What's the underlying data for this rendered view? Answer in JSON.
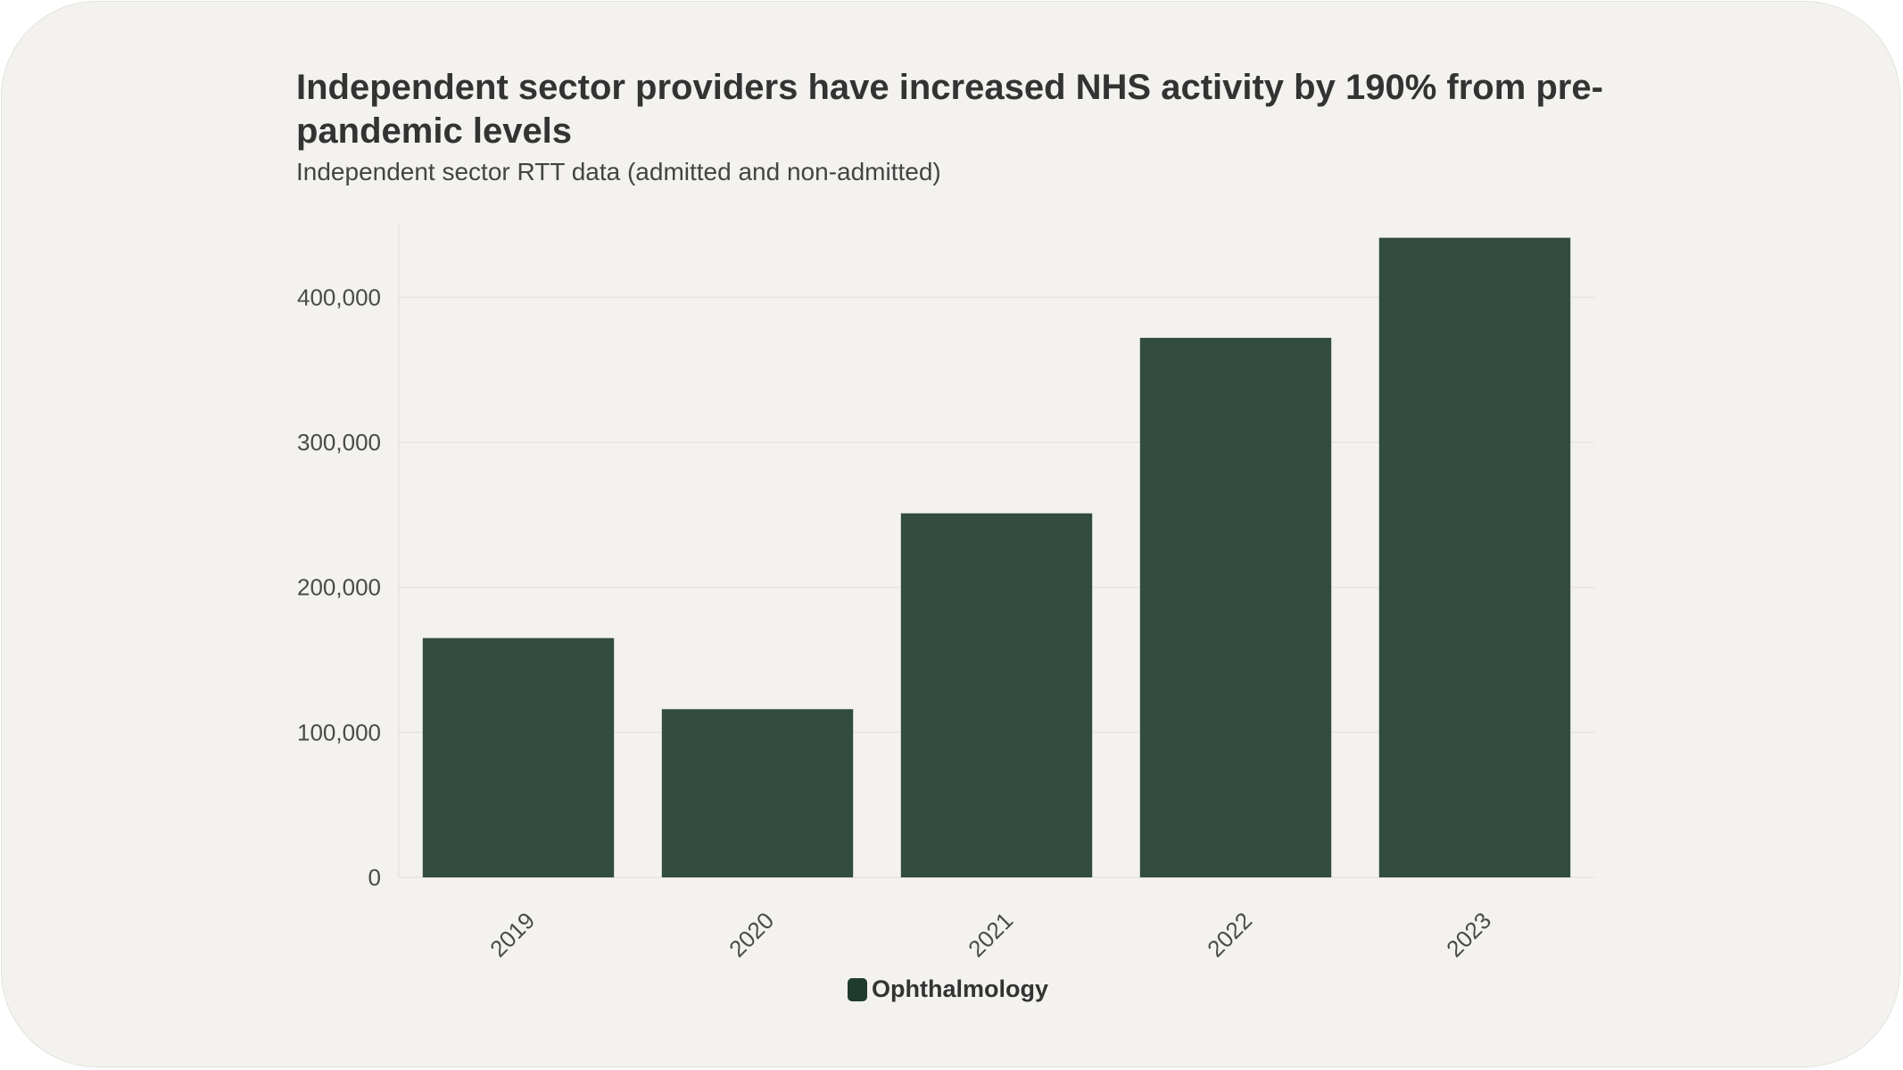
{
  "chart_data": {
    "type": "bar",
    "title": "Independent sector providers have increased NHS activity by 190% from pre-pandemic levels",
    "subtitle": "Independent sector RTT data (admitted and non-admitted)",
    "categories": [
      "2019",
      "2020",
      "2021",
      "2022",
      "2023"
    ],
    "series": [
      {
        "name": "Ophthalmology",
        "values": [
          165000,
          116000,
          251000,
          372000,
          441000
        ]
      }
    ],
    "y_ticks": [
      {
        "value": 0,
        "label": "0"
      },
      {
        "value": 100000,
        "label": "100,000"
      },
      {
        "value": 200000,
        "label": "200,000"
      },
      {
        "value": 300000,
        "label": "300,000"
      },
      {
        "value": 400000,
        "label": "400,000"
      }
    ],
    "ylim": [
      0,
      450000
    ],
    "grid": true,
    "legend_position": "bottom-center",
    "colors": {
      "bar": "#324c3f",
      "legend": "#1f3a2e",
      "grid": "#e6e4df",
      "background": "#f3f2ef"
    }
  }
}
